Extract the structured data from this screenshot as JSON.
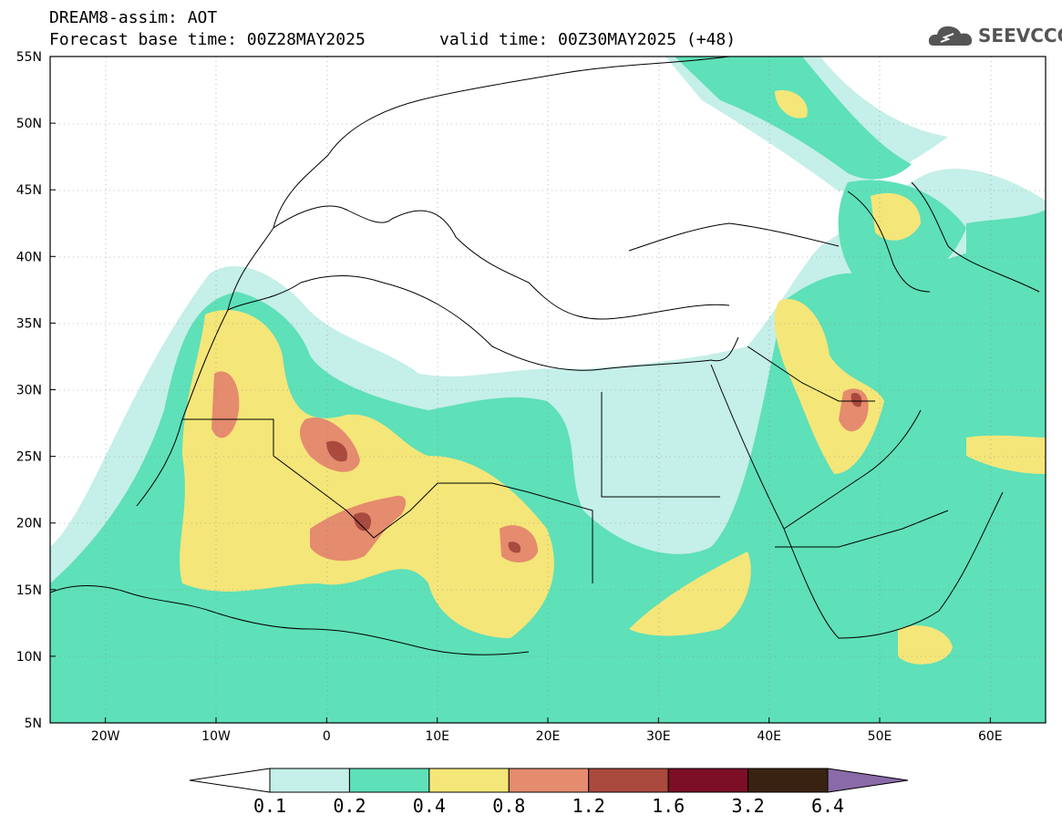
{
  "header": {
    "title": "DREAM8-assim: AOT",
    "base_time": "Forecast base time: 00Z28MAY2025",
    "valid_time": "valid time: 00Z30MAY2025 (+48)",
    "logo_text": "SEEVCCC"
  },
  "map": {
    "lat_labels": [
      "55N",
      "50N",
      "45N",
      "40N",
      "35N",
      "30N",
      "25N",
      "20N",
      "15N",
      "10N",
      "5N"
    ],
    "lon_labels": [
      "20W",
      "10W",
      "0",
      "10E",
      "20E",
      "30E",
      "40E",
      "50E",
      "60E"
    ],
    "lon_range": [
      -25,
      65
    ],
    "lat_range": [
      5,
      55
    ]
  },
  "colorbar": {
    "levels": [
      "0.1",
      "0.2",
      "0.4",
      "0.8",
      "1.2",
      "1.6",
      "3.2",
      "6.4"
    ],
    "colors": [
      "#ffffff",
      "#c5efe9",
      "#5ee0b8",
      "#f5e679",
      "#e58b6e",
      "#aa4a3e",
      "#7c0f26",
      "#3a2212",
      "#8a6aa8"
    ]
  },
  "colors": {
    "c01": "#c5efe9",
    "c02": "#5ee0b8",
    "c04": "#f5e679",
    "c08": "#e58b6e",
    "c12": "#aa4a3e",
    "land_line": "#000000"
  }
}
